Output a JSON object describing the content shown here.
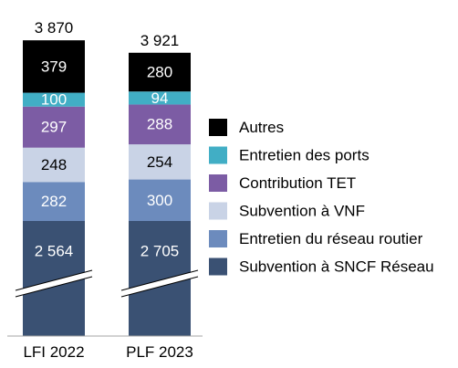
{
  "chart_data": {
    "type": "bar",
    "stacked": true,
    "axis_break": true,
    "categories": [
      "LFI 2022",
      "PLF 2023"
    ],
    "totals": [
      "3 870",
      "3 921"
    ],
    "series": [
      {
        "name": "Subvention à SNCF Réseau",
        "values": [
          2564,
          2705
        ],
        "labels": [
          "2 564",
          "2 705"
        ],
        "color": "#3a5173"
      },
      {
        "name": "Entretien du réseau routier",
        "values": [
          282,
          300
        ],
        "labels": [
          "282",
          "300"
        ],
        "color": "#6c8bbd"
      },
      {
        "name": "Subvention à VNF",
        "values": [
          248,
          254
        ],
        "labels": [
          "248",
          "254"
        ],
        "color": "#c9d3e6"
      },
      {
        "name": "Contribution TET",
        "values": [
          297,
          288
        ],
        "labels": [
          "297",
          "288"
        ],
        "color": "#7c5ca4"
      },
      {
        "name": "Entretien des ports",
        "values": [
          100,
          94
        ],
        "labels": [
          "100",
          "94"
        ],
        "color": "#41aec5"
      },
      {
        "name": "Autres",
        "values": [
          379,
          280
        ],
        "labels": [
          "379",
          "280"
        ],
        "color": "#000000"
      }
    ],
    "legend_position": "right"
  }
}
